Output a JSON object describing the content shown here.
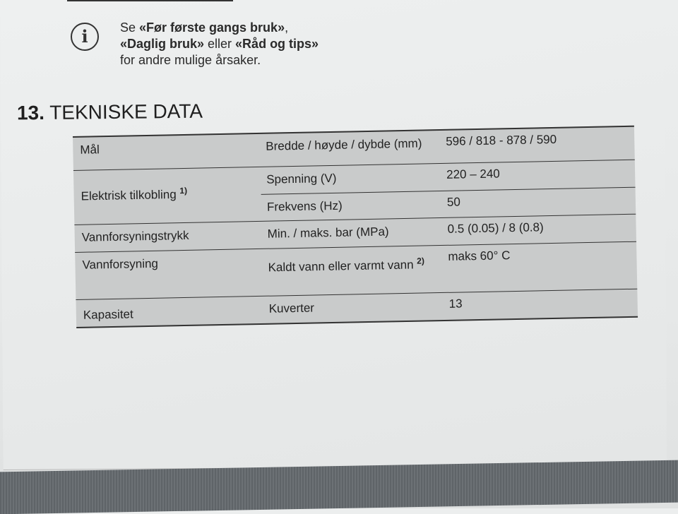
{
  "note": {
    "icon": "info-icon",
    "prefix": "Se ",
    "link1": "«Før første gangs bruk»",
    "sep1": ", ",
    "link2": "«Daglig bruk»",
    "sep2": " eller ",
    "link3": "«Råd og tips»",
    "suffix": " for andre mulige årsaker."
  },
  "section": {
    "number": "13.",
    "title": "TEKNISKE DATA"
  },
  "table": {
    "rows": [
      {
        "label": "Mål",
        "items": [
          {
            "param": "Bredde / høyde / dybde (mm)",
            "value": "596 / 818 - 878 / 590"
          }
        ]
      },
      {
        "label": "Elektrisk tilkobling",
        "footnote": "1)",
        "items": [
          {
            "param": "Spenning (V)",
            "value": "220 – 240"
          },
          {
            "param": "Frekvens (Hz)",
            "value": "50"
          }
        ]
      },
      {
        "label": "Vannforsyningstrykk",
        "items": [
          {
            "param": "Min. / maks. bar (MPa)",
            "value": "0.5 (0.05) / 8 (0.8)"
          }
        ]
      },
      {
        "label": "Vannforsyning",
        "items": [
          {
            "param": "Kaldt vann eller varmt vann",
            "footnote": "2)",
            "value": "maks 60° C"
          }
        ]
      },
      {
        "label": "Kapasitet",
        "items": [
          {
            "param": "Kuverter",
            "value": "13"
          }
        ]
      }
    ]
  }
}
